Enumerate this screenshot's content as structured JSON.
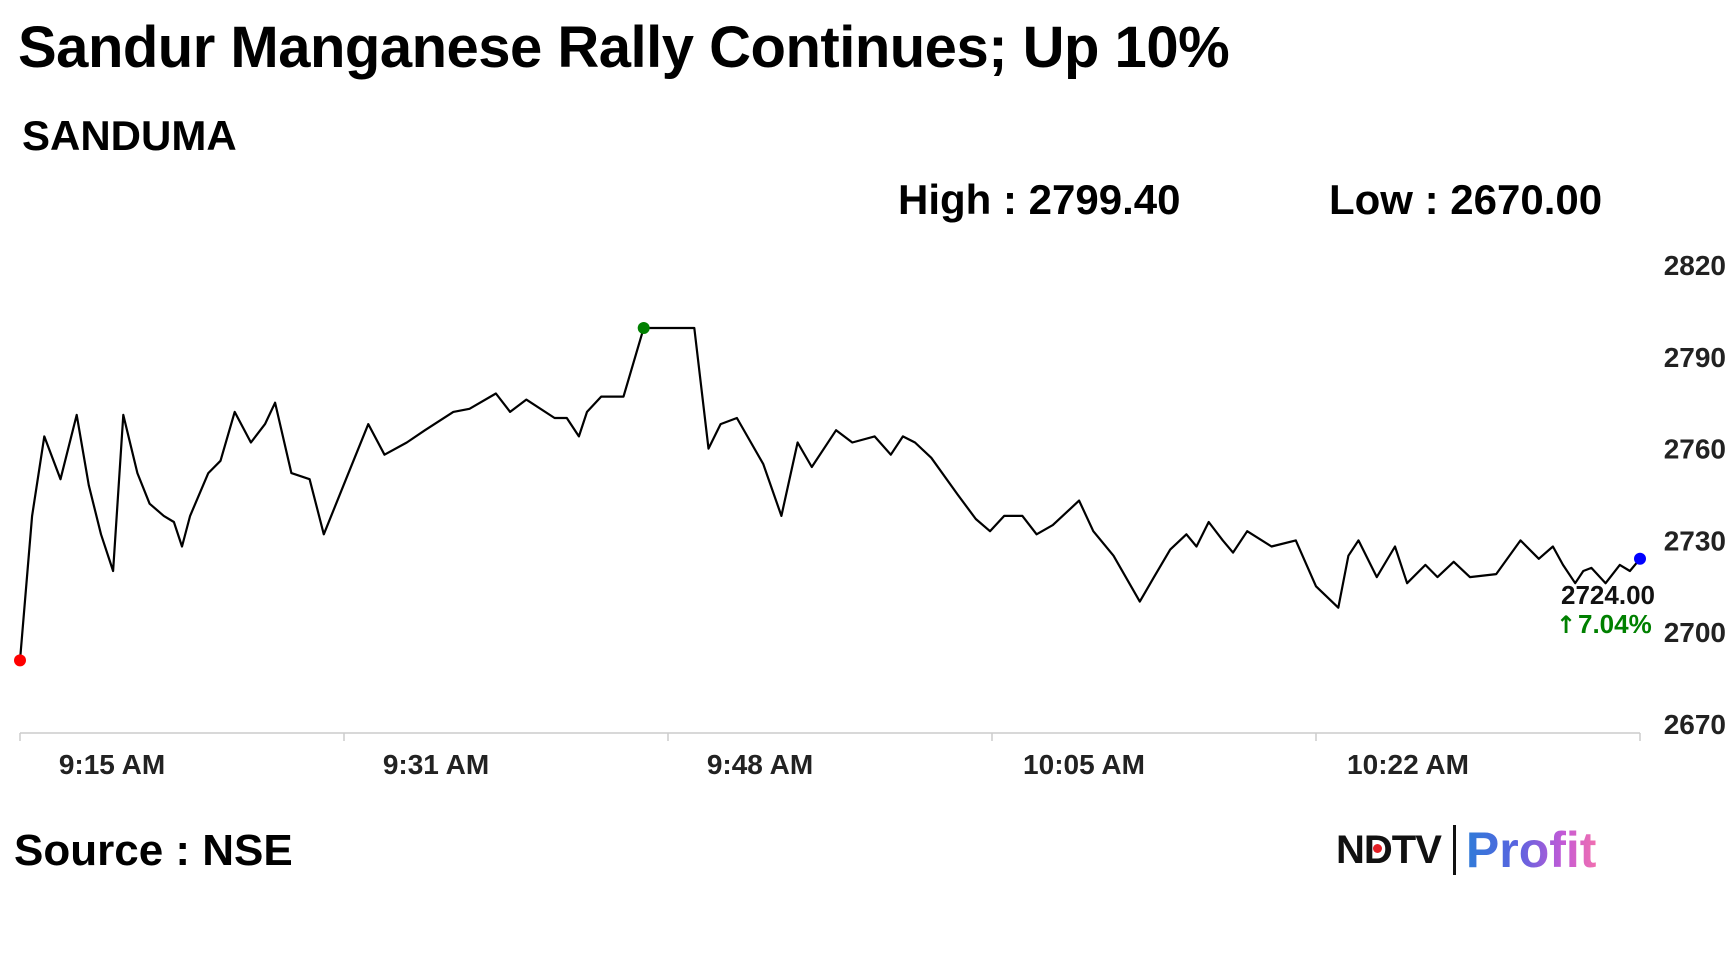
{
  "header": {
    "title": "Sandur Manganese Rally Continues; Up 10%",
    "ticker": "SANDUMA",
    "high_text": "High : 2799.40",
    "low_text": "Low : 2670.00"
  },
  "footer": {
    "source": "Source : NSE",
    "logo_left": "NDTV",
    "logo_right": "Profit"
  },
  "colors": {
    "line": "#000000",
    "start_marker": "#ff0000",
    "high_marker": "#008000",
    "last_marker": "#0000ff",
    "change_up": "#008000",
    "axis": "#cccccc"
  },
  "chart_data": {
    "type": "line",
    "x_tick_labels": [
      "9:15 AM",
      "9:31 AM",
      "9:48 AM",
      "10:05 AM",
      "10:22 AM"
    ],
    "y_ticks": [
      2670,
      2700,
      2730,
      2760,
      2790,
      2820
    ],
    "ylim": [
      2670,
      2820
    ],
    "xlim": [
      0,
      80
    ],
    "high": 2799.4,
    "low": 2670.0,
    "last_price_label": "2724.00",
    "change_label": "7.04%",
    "change_arrow": "↑",
    "grid": false,
    "series": [
      {
        "x": [
          0,
          0.6,
          1.2,
          2,
          2.8,
          3.4,
          4,
          4.6,
          5.1,
          5.8,
          6.4,
          7.1,
          7.6,
          8,
          8.4,
          9.3,
          9.9,
          10.6,
          11.4,
          12.1,
          12.6,
          13.4,
          14.3,
          15,
          16.1,
          17.2,
          18,
          19.1,
          20,
          21.4,
          22.2,
          23.5,
          24.2,
          25,
          26.4,
          27,
          27.6,
          28,
          28.7,
          29.8,
          30.8,
          31.7,
          32.2,
          32.6,
          33.3,
          34,
          34.6,
          35.4,
          36.7,
          37.6,
          38.4,
          39.1,
          40.3,
          41.1,
          42.2,
          43,
          43.6,
          44.2,
          45,
          46.3,
          47.2,
          47.9,
          48.6,
          49.5,
          50.2,
          51,
          52.3,
          53,
          54,
          55.3,
          56,
          56.8,
          57.6,
          58.1,
          58.7,
          59.4,
          59.9,
          60.6,
          61.8,
          63,
          64,
          65.1,
          65.6,
          66.1,
          67,
          67.9,
          68.5,
          69.4,
          70,
          70.8,
          71.6,
          72.9,
          74.1,
          75,
          75.7,
          76.2,
          76.8,
          77.2,
          77.6,
          78.3,
          79,
          79.5,
          80
        ],
        "y": [
          2690.8,
          2738,
          2764,
          2750,
          2771,
          2748,
          2732,
          2720,
          2771,
          2752,
          2742,
          2738,
          2736,
          2728,
          2738,
          2752,
          2756,
          2772,
          2762,
          2768,
          2775,
          2752,
          2750,
          2732,
          2750,
          2768,
          2758,
          2762,
          2766,
          2772,
          2773,
          2778,
          2772,
          2776,
          2770,
          2770,
          2764,
          2772,
          2777,
          2777,
          2799.4,
          2799.4,
          2799.4,
          2799.4,
          2799.4,
          2760,
          2768,
          2770,
          2755,
          2738,
          2762,
          2754,
          2766,
          2762,
          2764,
          2758,
          2764,
          2762,
          2757,
          2745,
          2737,
          2733,
          2738,
          2738,
          2732,
          2735,
          2743,
          2733,
          2725,
          2710,
          2718,
          2727,
          2732,
          2728,
          2736,
          2730,
          2726,
          2733,
          2728,
          2730,
          2715,
          2708,
          2725,
          2730,
          2718,
          2728,
          2716,
          2722,
          2718,
          2723,
          2718,
          2719,
          2730,
          2724,
          2728,
          2722,
          2716,
          2720,
          2721,
          2716,
          2722,
          2720,
          2724
        ]
      }
    ]
  }
}
